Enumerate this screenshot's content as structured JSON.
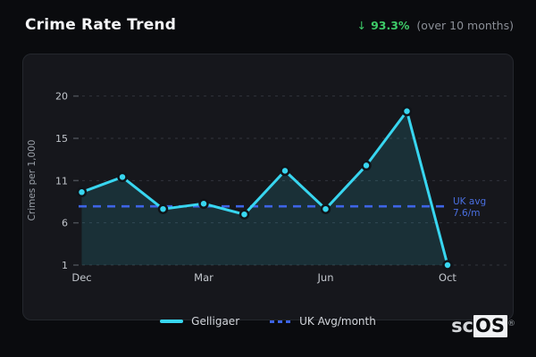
{
  "header": {
    "title": "Crime Rate Trend",
    "delta_arrow": "↓",
    "delta_value": "93.3%",
    "period_note": "(over 10 months)"
  },
  "chart_data": {
    "type": "line",
    "title": "Crime Rate Trend",
    "xlabel": "",
    "ylabel": "Crimes per 1,000",
    "ylim": [
      1,
      20
    ],
    "y_ticks": [
      1,
      6,
      11,
      15,
      20
    ],
    "grid": "horizontal-dashed",
    "legend_position": "bottom-center",
    "x_point_count": 10,
    "x_tick_labels": [
      {
        "index": 0,
        "label": "Dec"
      },
      {
        "index": 3,
        "label": "Mar"
      },
      {
        "index": 6,
        "label": "Jun"
      },
      {
        "index": 9,
        "label": "Oct"
      }
    ],
    "series": [
      {
        "name": "Gelligaer",
        "style": "solid-line-area-points",
        "color": "#38d6f0",
        "values": [
          9.2,
          10.9,
          7.3,
          7.9,
          6.7,
          11.6,
          7.3,
          12.2,
          18.3,
          1.0
        ]
      },
      {
        "name": "UK Avg/month",
        "style": "dashed-reference-line",
        "color": "#3d64e6",
        "value": 7.6
      }
    ],
    "annotation": {
      "line1": "UK avg",
      "line2": "7.6/m",
      "color": "#4a6fe0"
    }
  },
  "logo": {
    "prefix": "sc",
    "suffix": "OS",
    "registered_mark": "®"
  },
  "colors": {
    "page_bg": "#0a0b0e",
    "panel_bg": "#16171c",
    "panel_border": "#24272d",
    "grid_line": "#31353c",
    "tick_mark": "#4a4e55",
    "accent_cyan": "#38d6f0",
    "ref_blue": "#3d64e6",
    "annotation_blue": "#4a6fe0",
    "positive_green": "#3ecb68",
    "text_primary": "#f5f6f8",
    "text_muted": "#8b8f97",
    "tick_label": "#c2c6cc",
    "axis_title": "#9aa0a8",
    "legend_text": "#d3d6db",
    "point_stroke": "#101419"
  }
}
